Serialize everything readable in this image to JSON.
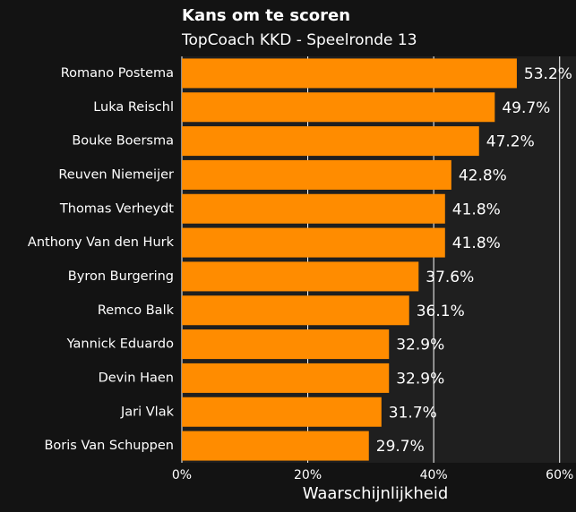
{
  "chart_data": {
    "type": "barh",
    "title": "Kans om te scoren",
    "subtitle": "TopCoach KKD - Speelronde 13",
    "x_label": "Waarschijnlijkheid",
    "categories": [
      "Romano Postema",
      "Luka Reischl",
      "Bouke Boersma",
      "Reuven Niemeijer",
      "Thomas Verheydt",
      "Anthony Van den Hurk",
      "Byron Burgering",
      "Remco Balk",
      "Yannick Eduardo",
      "Devin Haen",
      "Jari Vlak",
      "Boris Van Schuppen"
    ],
    "values": [
      53.2,
      49.7,
      47.2,
      42.8,
      41.8,
      41.8,
      37.6,
      36.1,
      32.9,
      32.9,
      31.7,
      29.7
    ],
    "value_labels": [
      "53.2%",
      "49.7%",
      "47.2%",
      "42.8%",
      "41.8%",
      "41.8%",
      "37.6%",
      "36.1%",
      "32.9%",
      "32.9%",
      "31.7%",
      "29.7%"
    ],
    "color": "#ff8c00",
    "xlim": [
      0,
      62.6
    ],
    "xticks": [
      {
        "value": 0,
        "label": "0%"
      },
      {
        "value": 20,
        "label": "20%"
      },
      {
        "value": 40,
        "label": "40%"
      },
      {
        "value": 60,
        "label": "60%"
      }
    ],
    "grid": true
  }
}
